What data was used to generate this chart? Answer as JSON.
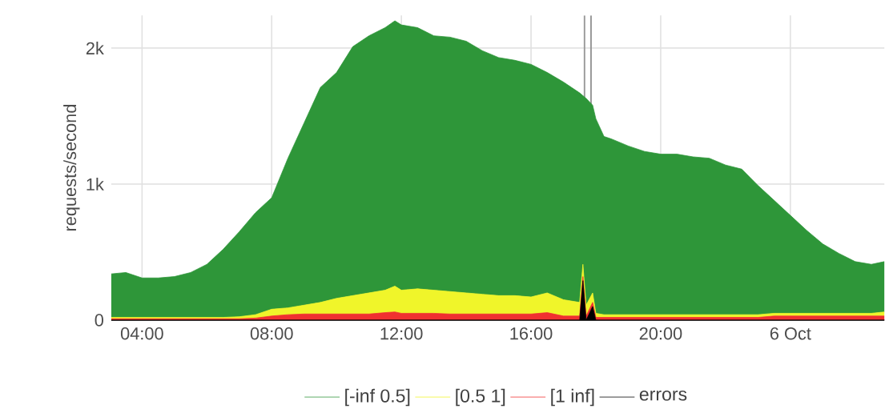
{
  "chart_data": {
    "type": "area",
    "stacked": true,
    "ylabel": "requests/second",
    "x": [
      3.05,
      3.5,
      4,
      4.5,
      5,
      5.5,
      6,
      6.5,
      7,
      7.5,
      8,
      8.5,
      9,
      9.5,
      10,
      10.5,
      11,
      11.5,
      11.8,
      12,
      12.5,
      13,
      13.5,
      14,
      14.5,
      15,
      15.5,
      16,
      16.5,
      17,
      17.5,
      17.6,
      17.7,
      17.9,
      18,
      18.25,
      18.5,
      19,
      19.5,
      20,
      20.5,
      21,
      21.5,
      22,
      22.5,
      23,
      23.5,
      24,
      24.5,
      25,
      25.5,
      26,
      26.5,
      26.9
    ],
    "xlim": [
      3.05,
      26.9
    ],
    "xticks": [
      {
        "value": 4,
        "label": "04:00"
      },
      {
        "value": 8,
        "label": "08:00"
      },
      {
        "value": 12,
        "label": "12:00"
      },
      {
        "value": 16,
        "label": "16:00"
      },
      {
        "value": 20,
        "label": "20:00"
      },
      {
        "value": 24,
        "label": "6 Oct"
      }
    ],
    "ylim": [
      0,
      2240
    ],
    "yticks": [
      0,
      {
        "value": 1000,
        "label": "1k"
      },
      {
        "value": 2000,
        "label": "2k"
      }
    ],
    "grid": true,
    "legend": "bottom",
    "marker": "none",
    "ref_lines": [
      {
        "axis": "x",
        "value": 17.65,
        "color": "#999999"
      },
      {
        "axis": "x",
        "value": 17.85,
        "color": "#999999"
      }
    ],
    "series": [
      {
        "name": "errors",
        "color": "#000000",
        "values": [
          0,
          0,
          0,
          0,
          0,
          0,
          0,
          0,
          0,
          0,
          0,
          0,
          0,
          0,
          0,
          0,
          0,
          0,
          0,
          0,
          0,
          0,
          0,
          0,
          0,
          0,
          0,
          0,
          0,
          0,
          0,
          290,
          0,
          100,
          0,
          0,
          0,
          0,
          0,
          0,
          0,
          0,
          0,
          0,
          0,
          0,
          0,
          0,
          0,
          0,
          0,
          0,
          0,
          0
        ]
      },
      {
        "name": "[1 inf]",
        "color": "#f03030",
        "values": [
          10,
          10,
          10,
          10,
          10,
          10,
          10,
          10,
          10,
          15,
          30,
          40,
          45,
          45,
          45,
          45,
          45,
          55,
          60,
          50,
          50,
          50,
          45,
          45,
          45,
          45,
          45,
          45,
          55,
          30,
          30,
          30,
          30,
          30,
          20,
          20,
          20,
          20,
          20,
          20,
          20,
          20,
          20,
          20,
          20,
          20,
          30,
          30,
          30,
          30,
          30,
          30,
          30,
          30
        ]
      },
      {
        "name": "[0.5 1]",
        "color": "#f0f52a",
        "values": [
          10,
          10,
          10,
          10,
          10,
          10,
          10,
          10,
          15,
          25,
          50,
          50,
          65,
          85,
          115,
          135,
          155,
          165,
          190,
          170,
          180,
          170,
          165,
          155,
          145,
          135,
          135,
          125,
          145,
          120,
          100,
          90,
          80,
          70,
          30,
          20,
          20,
          20,
          20,
          20,
          20,
          20,
          20,
          20,
          20,
          20,
          20,
          20,
          20,
          20,
          20,
          20,
          20,
          30
        ]
      },
      {
        "name": "[-inf 0.5]",
        "color": "#2e9639",
        "values": [
          320,
          330,
          290,
          290,
          300,
          330,
          390,
          500,
          625,
          750,
          820,
          1100,
          1340,
          1580,
          1660,
          1830,
          1890,
          1930,
          1950,
          1950,
          1920,
          1870,
          1870,
          1850,
          1790,
          1750,
          1730,
          1710,
          1620,
          1600,
          1540,
          1240,
          1520,
          1380,
          1430,
          1310,
          1290,
          1240,
          1200,
          1180,
          1180,
          1160,
          1150,
          1100,
          1070,
          950,
          830,
          720,
          610,
          510,
          440,
          380,
          360,
          370
        ]
      }
    ]
  }
}
